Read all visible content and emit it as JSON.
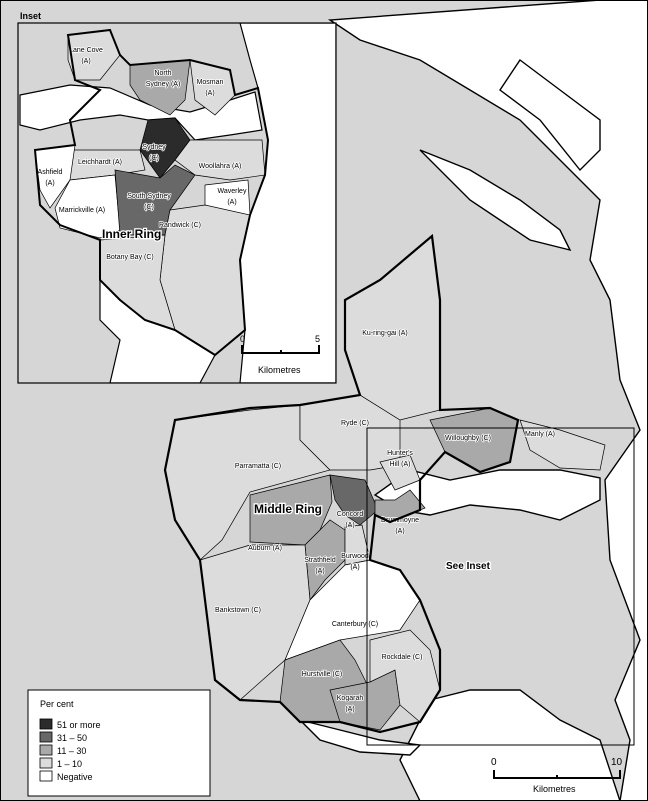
{
  "colors": {
    "51+": "#2b2b2b",
    "31-50": "#686868",
    "11-30": "#a9a9a9",
    "1-10": "#dcdcdc",
    "neg": "#ffffff",
    "land_other": "#d6d6d6",
    "water": "#ffffff"
  },
  "legend": {
    "title": "Per cent",
    "items": [
      {
        "key": "51+",
        "label": "51 or more"
      },
      {
        "key": "31-50",
        "label": "31 – 50"
      },
      {
        "key": "11-30",
        "label": "11 – 30"
      },
      {
        "key": "1-10",
        "label": " 1 – 10"
      },
      {
        "key": "neg",
        "label": "Negative"
      }
    ]
  },
  "labels": {
    "inset": "Inset",
    "inner_ring": "Inner Ring",
    "middle_ring": "Middle Ring",
    "see_inset": "See Inset"
  },
  "scale_inset": {
    "start": "0",
    "end": "5",
    "unit": "Kilometres"
  },
  "scale_main": {
    "start": "0",
    "end": "10",
    "unit": "Kilometres"
  },
  "main_regions": [
    {
      "id": "parramatta",
      "lines": [
        "Parramatta (C)"
      ],
      "cat": "1-10"
    },
    {
      "id": "ryde",
      "lines": [
        "Ryde (C)"
      ],
      "cat": "1-10"
    },
    {
      "id": "kuringgai",
      "lines": [
        "Ku-ring-gai (A)"
      ],
      "cat": "1-10"
    },
    {
      "id": "hunters",
      "lines": [
        "Hunter's",
        "Hill (A)"
      ],
      "cat": "1-10"
    },
    {
      "id": "willoughby",
      "lines": [
        "Willoughby (C)"
      ],
      "cat": "11-30"
    },
    {
      "id": "manly",
      "lines": [
        "Manly (A)"
      ],
      "cat": "1-10"
    },
    {
      "id": "auburn",
      "lines": [
        "Auburn (A)"
      ],
      "cat": "11-30"
    },
    {
      "id": "concord",
      "lines": [
        "Concord",
        "(A)"
      ],
      "cat": "31-50"
    },
    {
      "id": "drummoyne",
      "lines": [
        "Drummoyne",
        "(A)"
      ],
      "cat": "11-30"
    },
    {
      "id": "strathfield",
      "lines": [
        "Strathfield",
        "(A)"
      ],
      "cat": "11-30"
    },
    {
      "id": "burwood",
      "lines": [
        "Burwood",
        "(A)"
      ],
      "cat": "1-10"
    },
    {
      "id": "bankstown",
      "lines": [
        "Bankstown (C)"
      ],
      "cat": "1-10"
    },
    {
      "id": "canterbury",
      "lines": [
        "Canterbury (C)"
      ],
      "cat": "neg"
    },
    {
      "id": "hurstville",
      "lines": [
        "Hurstville (C)"
      ],
      "cat": "11-30"
    },
    {
      "id": "kogarah",
      "lines": [
        "Kogarah",
        "(A)"
      ],
      "cat": "11-30"
    },
    {
      "id": "rockdale",
      "lines": [
        "Rockdale (C)"
      ],
      "cat": "1-10"
    }
  ],
  "inset_regions": [
    {
      "id": "lanecove",
      "lines": [
        "Lane Cove",
        "(A)"
      ],
      "cat": "1-10"
    },
    {
      "id": "northsydney",
      "lines": [
        "North",
        "Sydney (A)"
      ],
      "cat": "11-30"
    },
    {
      "id": "mosman",
      "lines": [
        "Mosman",
        "(A)"
      ],
      "cat": "1-10"
    },
    {
      "id": "sydney",
      "lines": [
        "Sydney",
        "(C)"
      ],
      "cat": "51+"
    },
    {
      "id": "leichhardt",
      "lines": [
        "Leichhardt (A)"
      ],
      "cat": "1-10"
    },
    {
      "id": "ashfield",
      "lines": [
        "Ashfield",
        "(A)"
      ],
      "cat": "neg"
    },
    {
      "id": "marrickville",
      "lines": [
        "Marrickville (A)"
      ],
      "cat": "neg"
    },
    {
      "id": "southsydney",
      "lines": [
        "South Sydney",
        "(C)"
      ],
      "cat": "31-50"
    },
    {
      "id": "woollahra",
      "lines": [
        "Woollahra (A)"
      ],
      "cat": "1-10"
    },
    {
      "id": "waverley",
      "lines": [
        "Waverley",
        "(A)"
      ],
      "cat": "neg"
    },
    {
      "id": "randwick",
      "lines": [
        "Randwick (C)"
      ],
      "cat": "1-10"
    },
    {
      "id": "botany",
      "lines": [
        "Botany Bay (C)"
      ],
      "cat": "1-10"
    }
  ]
}
